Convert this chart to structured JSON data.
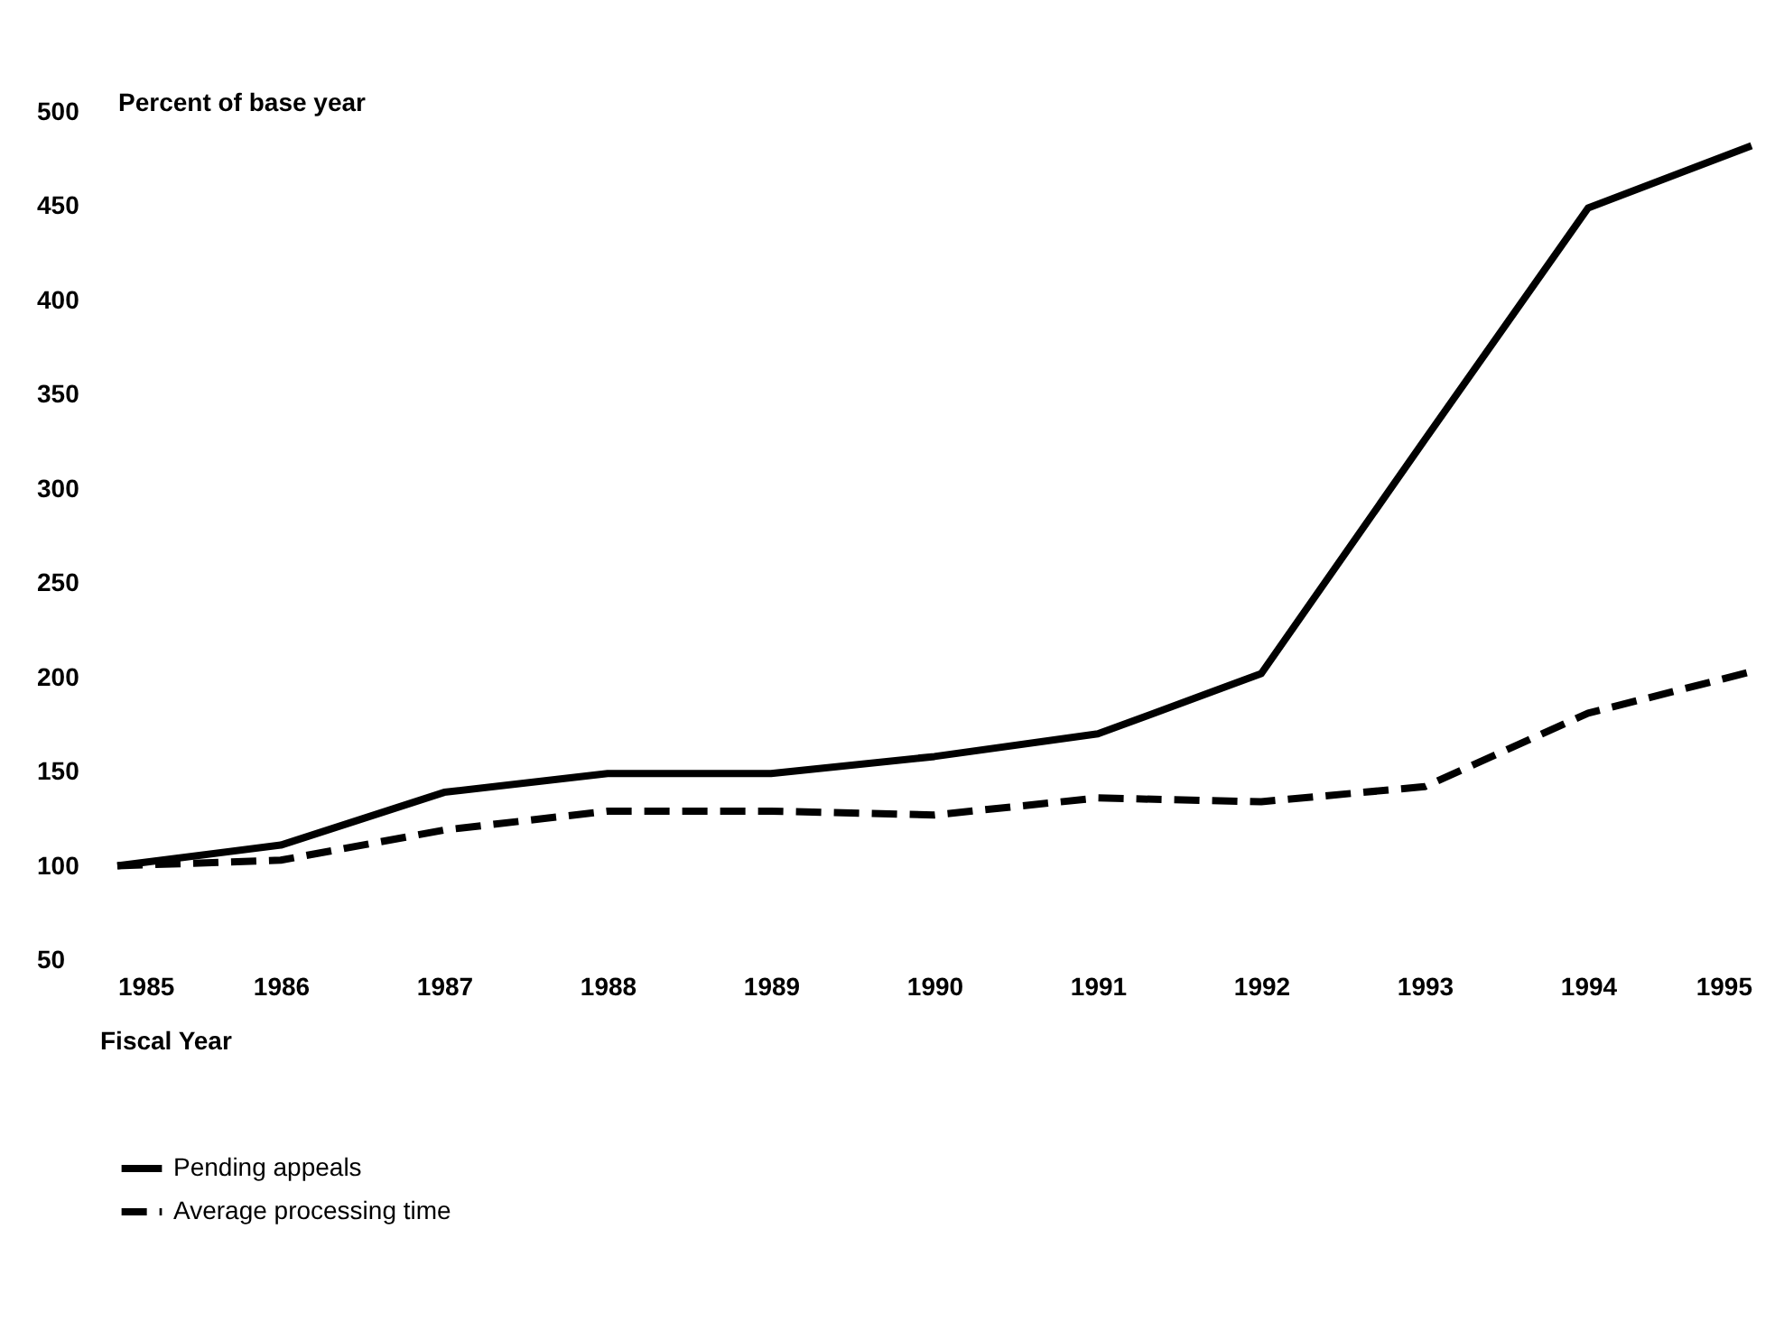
{
  "chart_data": {
    "type": "line",
    "xlabel": "Fiscal Year",
    "ylabel": "Percent of base year",
    "x": [
      1985,
      1986,
      1987,
      1988,
      1989,
      1990,
      1991,
      1992,
      1993,
      1994,
      1995
    ],
    "series": [
      {
        "name": "Pending appeals",
        "color": "#000000",
        "line_style": "solid",
        "values": [
          100,
          111,
          139,
          149,
          149,
          158,
          170,
          202,
          326,
          449,
          482
        ]
      },
      {
        "name": "Average processing time",
        "color": "#000000",
        "line_style": "dashed",
        "values": [
          100,
          103,
          119,
          129,
          129,
          127,
          136,
          134,
          142,
          181,
          203
        ]
      }
    ],
    "xlim": [
      1985,
      1995
    ],
    "xticks": [
      1985,
      1986,
      1987,
      1988,
      1989,
      1990,
      1991,
      1992,
      1993,
      1994,
      1995
    ],
    "ylim": [
      50,
      500
    ],
    "yticks": [
      50,
      100,
      150,
      200,
      250,
      300,
      350,
      400,
      450,
      500
    ],
    "grid": false,
    "legend": "bottom left"
  }
}
